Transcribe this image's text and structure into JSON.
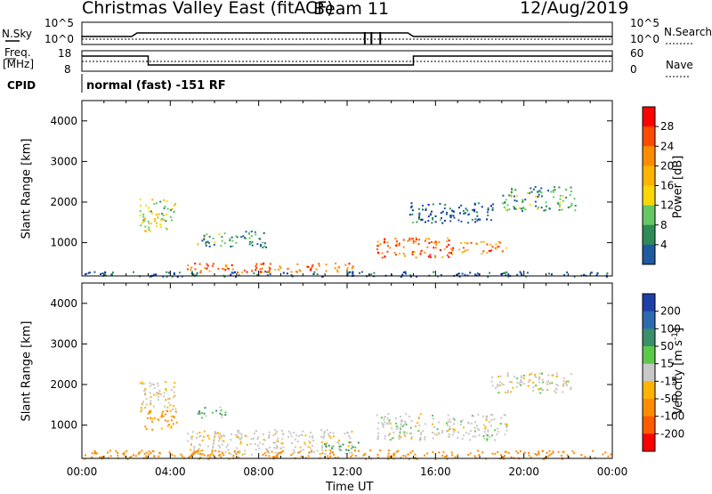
{
  "header": {
    "title": "Christmas Valley East (fitACF)",
    "beam": "Beam 11",
    "date": "12/Aug/2019"
  },
  "summary_panels": {
    "nsky_label": "N.Sky",
    "nsky_ticks": [
      "10^5",
      "10^0"
    ],
    "nsearch_label": "N.Search",
    "nsearch_ticks": [
      "10^5",
      "10^0"
    ],
    "freq_label_1": "Freq.",
    "freq_label_2": "[MHz]",
    "freq_ticks": [
      "18",
      "8"
    ],
    "nave_label": "Nave",
    "nave_ticks": [
      "60",
      "0"
    ],
    "cpid_label": "CPID",
    "cpid_text": "normal (fast) -151 RF"
  },
  "x_axis": {
    "label": "Time UT",
    "ticks": [
      "00:00",
      "04:00",
      "08:00",
      "12:00",
      "16:00",
      "20:00",
      "00:00"
    ]
  },
  "power_colorbar": {
    "label": "Power [dB]",
    "ticks": [
      "28",
      "24",
      "20",
      "16",
      "12",
      "8",
      "4"
    ],
    "colors": [
      "#ff0000",
      "#ff4a00",
      "#ff8c00",
      "#ffb400",
      "#ffd700",
      "#64c864",
      "#2e8b57",
      "#1f5a9e",
      "#0b2fa8",
      "#0010ff"
    ]
  },
  "velocity_colorbar": {
    "label": "Velocity [m s^-1]",
    "ticks": [
      "200",
      "100",
      "50",
      "15",
      "-15",
      "-50",
      "-100",
      "-200"
    ],
    "colors": [
      "#1f3fa8",
      "#2e6ab0",
      "#3a8f6a",
      "#5cc84c",
      "#c8c8c8",
      "#ffb400",
      "#ff8c00",
      "#ff5a00",
      "#ff0000"
    ]
  },
  "chart_data": [
    {
      "type": "heatmap",
      "title": "Power",
      "xlabel": "Time UT",
      "ylabel": "Slant Range [km]",
      "xlim": [
        "00:00",
        "24:00"
      ],
      "ylim": [
        180,
        4500
      ],
      "y_ticks": [
        1000,
        2000,
        3000,
        4000
      ],
      "colorbar_label": "Power [dB]",
      "colorbar_range": [
        0,
        32
      ],
      "echo_regions": [
        {
          "t_start": 4.7,
          "t_end": 12.3,
          "range_km": [
            280,
            520
          ],
          "power_db": 26
        },
        {
          "t_start": 2.6,
          "t_end": 4.2,
          "range_km": [
            1300,
            2100
          ],
          "power_db": 17
        },
        {
          "t_start": 5.2,
          "t_end": 8.3,
          "range_km": [
            900,
            1300
          ],
          "power_db": 12
        },
        {
          "t_start": 13.3,
          "t_end": 16.8,
          "range_km": [
            650,
            1150
          ],
          "power_db": 26
        },
        {
          "t_start": 17.0,
          "t_end": 19.2,
          "range_km": [
            750,
            1050
          ],
          "power_db": 24
        },
        {
          "t_start": 14.8,
          "t_end": 18.6,
          "range_km": [
            1500,
            2000
          ],
          "power_db": 8
        },
        {
          "t_start": 19.0,
          "t_end": 22.3,
          "range_km": [
            1800,
            2400
          ],
          "power_db": 12
        },
        {
          "t_start": 0.0,
          "t_end": 24.0,
          "range_km": [
            180,
            300
          ],
          "power_db": 8
        }
      ]
    },
    {
      "type": "heatmap",
      "title": "Velocity",
      "xlabel": "Time UT",
      "ylabel": "Slant Range [km]",
      "xlim": [
        "00:00",
        "24:00"
      ],
      "ylim": [
        180,
        4500
      ],
      "y_ticks": [
        1000,
        2000,
        3000,
        4000
      ],
      "colorbar_label": "Velocity [m s^-1]",
      "colorbar_range": [
        -250,
        250
      ],
      "echo_regions": [
        {
          "t_start": 2.6,
          "t_end": 4.2,
          "range_km": [
            1300,
            2100
          ],
          "velocity": -10
        },
        {
          "t_start": 2.8,
          "t_end": 4.3,
          "range_km": [
            900,
            1400
          ],
          "velocity": -60
        },
        {
          "t_start": 5.2,
          "t_end": 6.5,
          "range_km": [
            1200,
            1500
          ],
          "velocity": 30
        },
        {
          "t_start": 4.7,
          "t_end": 12.3,
          "range_km": [
            280,
            900
          ],
          "velocity": -5
        },
        {
          "t_start": 10.5,
          "t_end": 12.5,
          "range_km": [
            400,
            600
          ],
          "velocity": 30
        },
        {
          "t_start": 13.3,
          "t_end": 19.2,
          "range_km": [
            650,
            1300
          ],
          "velocity": 0
        },
        {
          "t_start": 18.5,
          "t_end": 22.3,
          "range_km": [
            1800,
            2300
          ],
          "velocity": 0
        },
        {
          "t_start": 0.0,
          "t_end": 24.0,
          "range_km": [
            180,
            400
          ],
          "velocity": -70
        }
      ]
    }
  ]
}
